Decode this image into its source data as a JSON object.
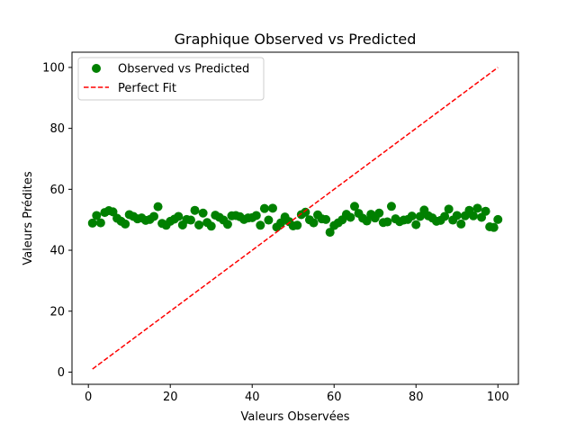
{
  "chart_data": {
    "type": "scatter",
    "title": "Graphique Observed vs Predicted",
    "xlabel": "Valeurs Observées",
    "ylabel": "Valeurs Prédites",
    "xlim": [
      -4,
      105
    ],
    "ylim": [
      -4,
      105
    ],
    "xticks": [
      0,
      20,
      40,
      60,
      80,
      100
    ],
    "yticks": [
      0,
      20,
      40,
      60,
      80,
      100
    ],
    "grid": false,
    "legend_position": "top-left",
    "series": [
      {
        "name": "Observed vs Predicted",
        "kind": "scatter",
        "color": "#008000",
        "x": [
          1,
          2,
          3,
          4,
          5,
          6,
          7,
          8,
          9,
          10,
          11,
          12,
          13,
          14,
          15,
          16,
          17,
          18,
          19,
          20,
          21,
          22,
          23,
          24,
          25,
          26,
          27,
          28,
          29,
          30,
          31,
          32,
          33,
          34,
          35,
          36,
          37,
          38,
          39,
          40,
          41,
          42,
          43,
          44,
          45,
          46,
          47,
          48,
          49,
          50,
          51,
          52,
          53,
          54,
          55,
          56,
          57,
          58,
          59,
          60,
          61,
          62,
          63,
          64,
          65,
          66,
          67,
          68,
          69,
          70,
          71,
          72,
          73,
          74,
          75,
          76,
          77,
          78,
          79,
          80,
          81,
          82,
          83,
          84,
          85,
          86,
          87,
          88,
          89,
          90,
          91,
          92,
          93,
          94,
          95,
          96,
          97,
          98,
          99,
          100
        ],
        "y": [
          48.9,
          51.4,
          49.0,
          52.4,
          53.0,
          52.6,
          50.5,
          49.5,
          48.6,
          51.7,
          51.1,
          50.3,
          50.6,
          49.8,
          50.1,
          51.1,
          54.3,
          48.8,
          48.2,
          49.5,
          50.2,
          51.1,
          48.3,
          50.1,
          49.9,
          53.1,
          48.3,
          52.2,
          49.1,
          47.9,
          51.5,
          50.8,
          49.9,
          48.5,
          51.3,
          51.4,
          51.0,
          50.1,
          50.6,
          50.7,
          51.4,
          48.2,
          53.7,
          49.9,
          53.8,
          47.6,
          49.0,
          50.9,
          49.4,
          48.0,
          48.2,
          51.7,
          52.5,
          50.0,
          49.0,
          51.6,
          50.3,
          50.1,
          45.9,
          48.1,
          49.0,
          50.0,
          51.8,
          50.8,
          54.4,
          52.1,
          50.5,
          49.6,
          51.8,
          50.6,
          52.2,
          49.1,
          49.3,
          54.4,
          50.3,
          49.4,
          49.9,
          50.1,
          51.2,
          48.4,
          51.1,
          53.2,
          51.3,
          50.6,
          49.5,
          49.8,
          51.1,
          53.5,
          49.9,
          51.4,
          48.6,
          51.3,
          53.1,
          51.3,
          53.8,
          50.8,
          52.8,
          47.7,
          47.5,
          50.1
        ]
      },
      {
        "name": "Perfect Fit",
        "kind": "line",
        "style": "dashed",
        "color": "#ff0000",
        "x": [
          1,
          100
        ],
        "y": [
          1,
          100
        ]
      }
    ]
  }
}
